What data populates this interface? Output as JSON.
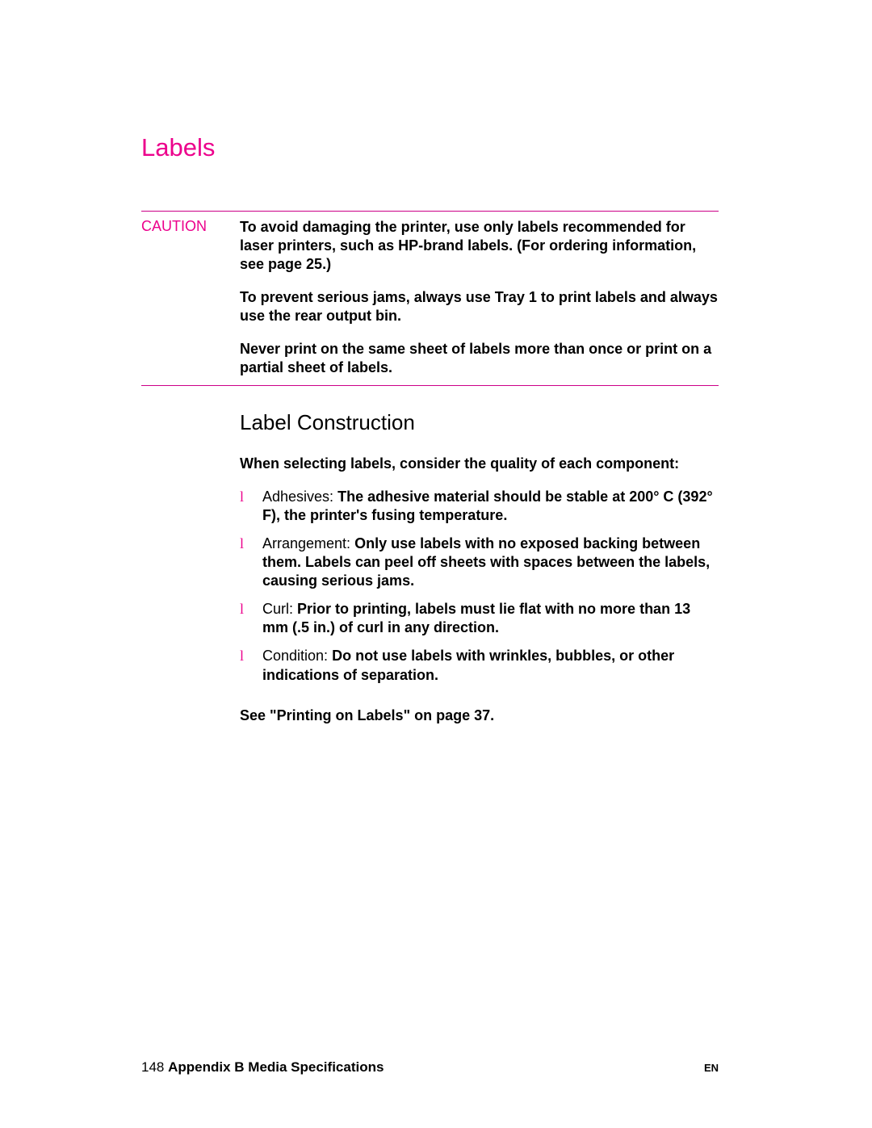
{
  "title": "Labels",
  "caution": {
    "label": "CAUTION",
    "paragraphs": [
      "To avoid damaging the printer, use only labels recommended for laser printers, such as HP-brand labels. (For ordering information, see page 25.)",
      "To prevent serious jams, always use Tray 1 to print labels and always use the rear output bin.",
      "Never print on the same sheet of labels more than once or print on a partial sheet of labels."
    ]
  },
  "subsection": {
    "title": "Label Construction",
    "intro": "When selecting labels, consider the quality of each component:",
    "bullets": [
      {
        "label": "Adhesives:",
        "text": "The adhesive material should be stable at 200° C (392° F), the printer's fusing temperature."
      },
      {
        "label": "Arrangement:",
        "text": "Only use labels with no exposed backing between them. Labels can peel off sheets with spaces between the labels, causing serious jams."
      },
      {
        "label": "Curl:",
        "text": "Prior to printing, labels must lie flat with no more than 13 mm (.5 in.) of curl in any direction."
      },
      {
        "label": "Condition:",
        "text": "Do not use labels with wrinkles, bubbles, or other indications of separation."
      }
    ],
    "see_ref": "See \"Printing on Labels\" on page 37."
  },
  "footer": {
    "page_number": "148",
    "section": "Appendix B Media Specifications",
    "lang": "EN"
  },
  "colors": {
    "accent": "#ec008c",
    "text": "#000000",
    "background": "#ffffff"
  }
}
